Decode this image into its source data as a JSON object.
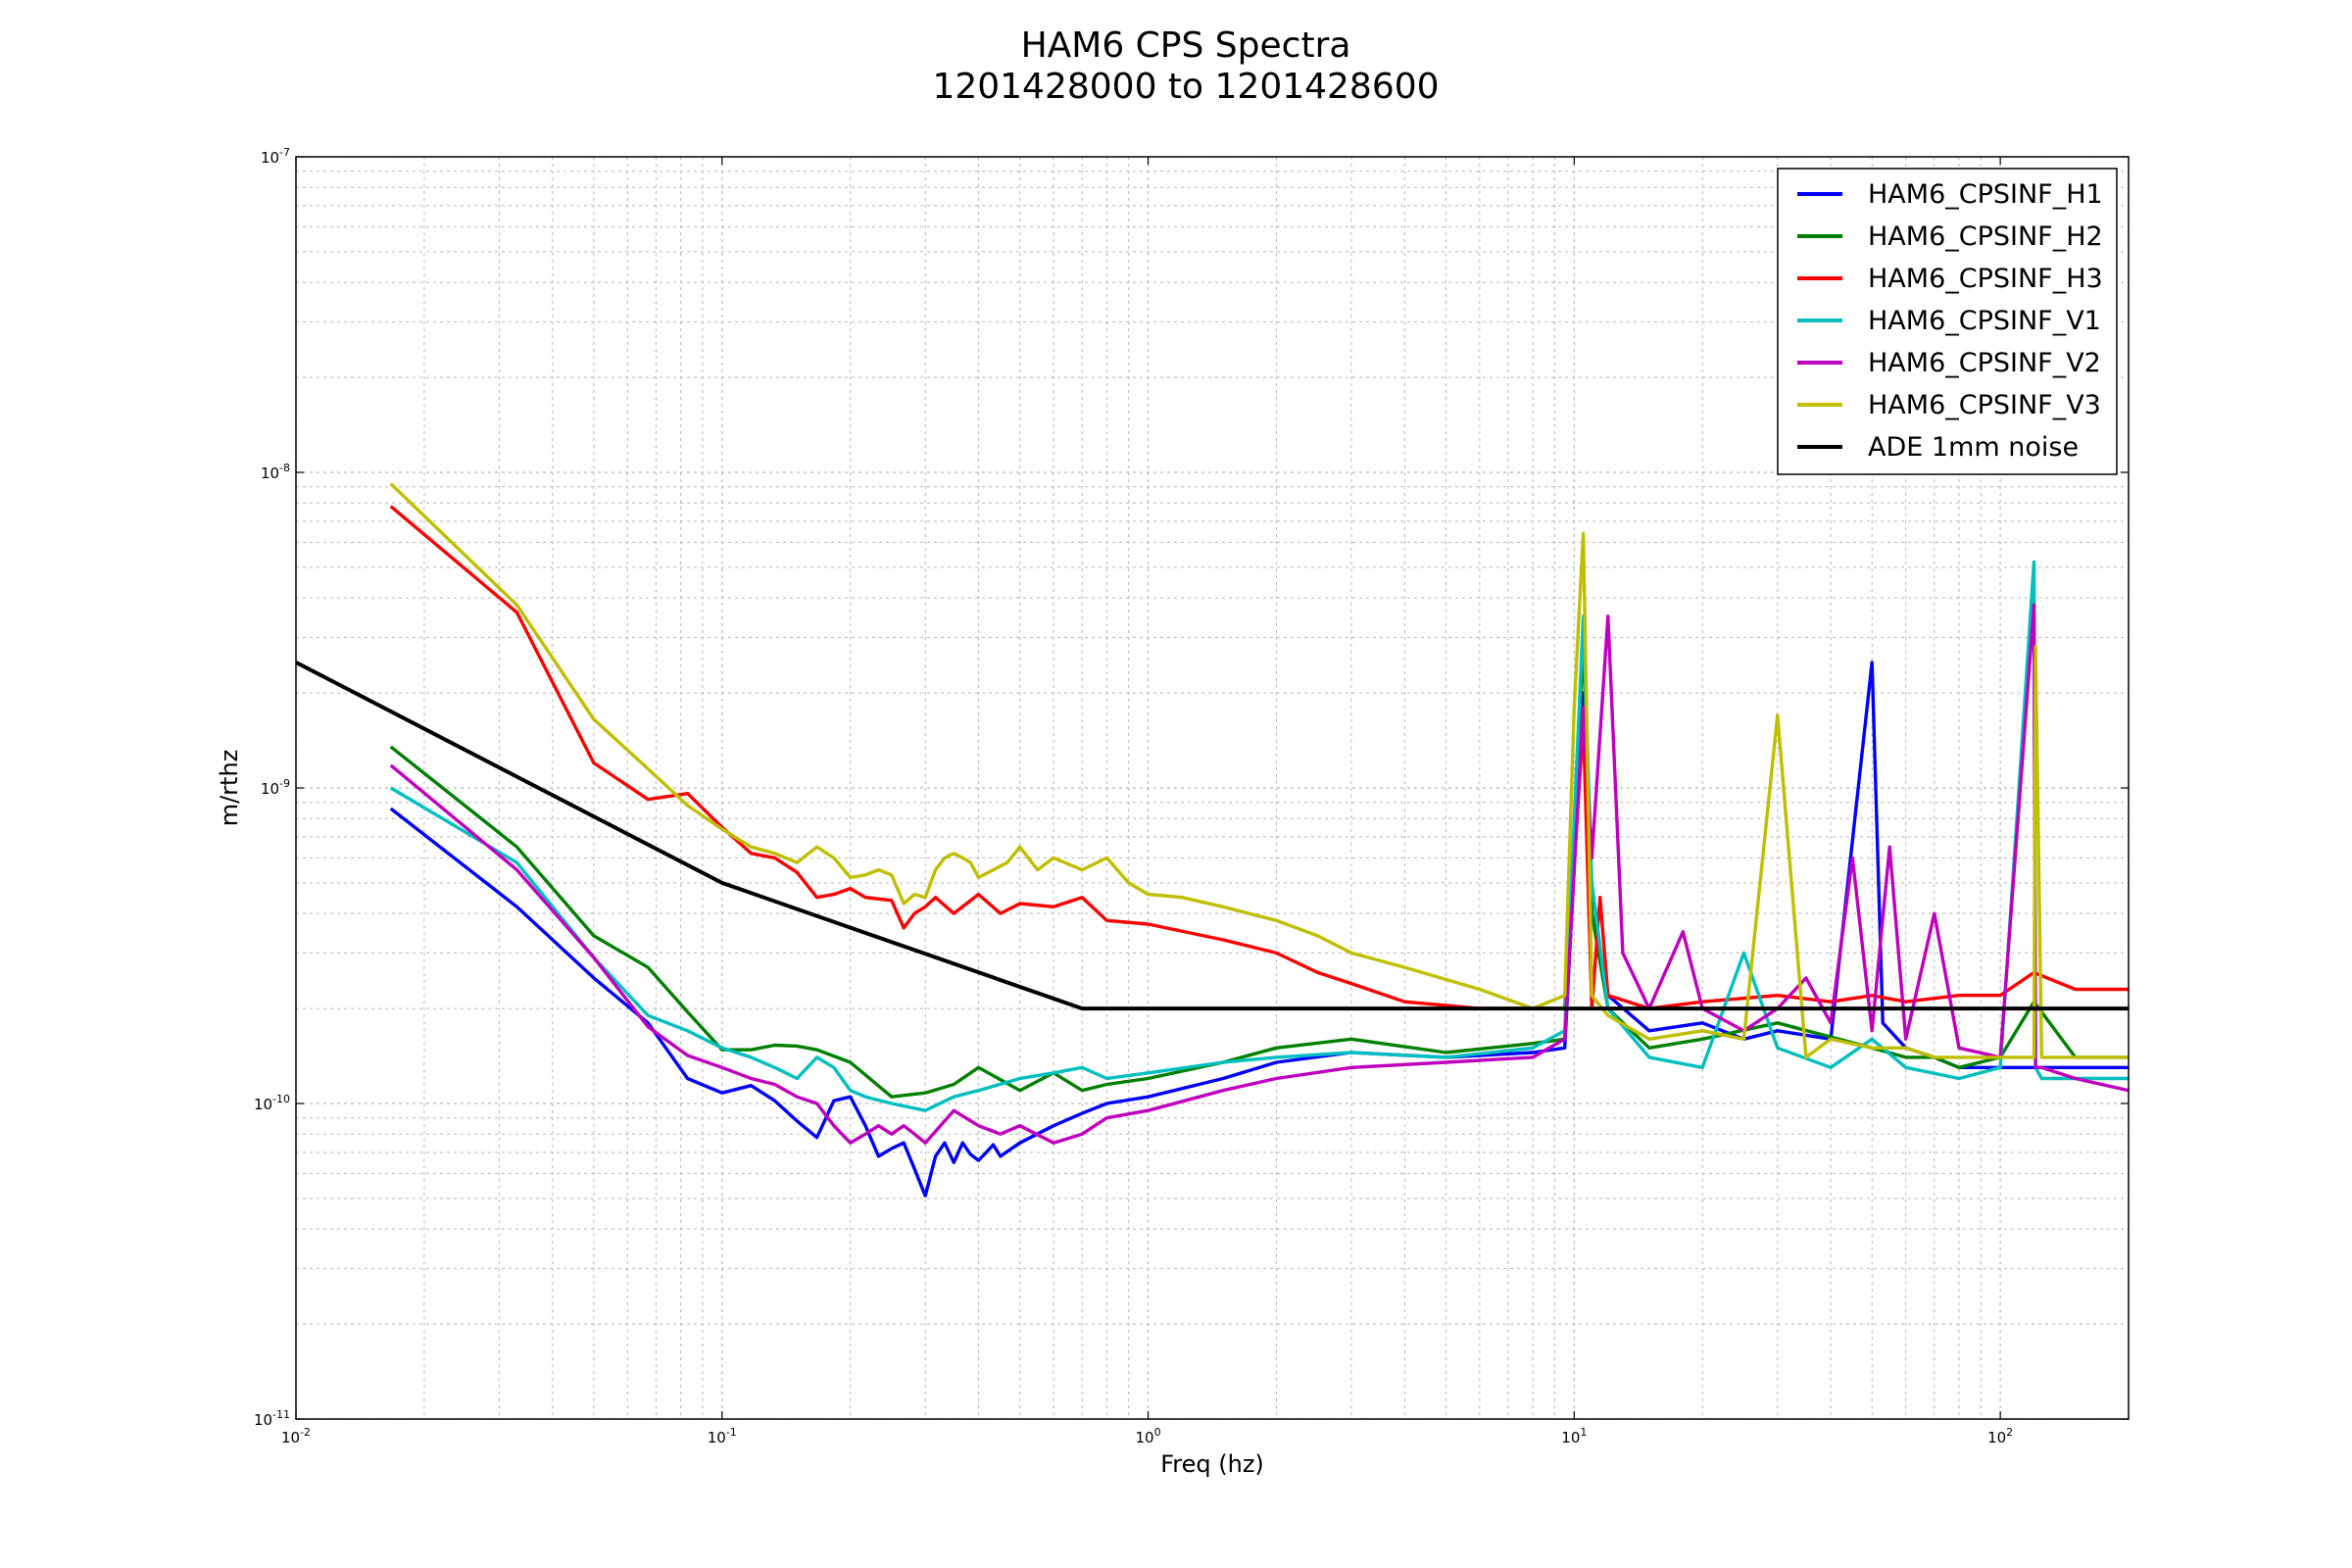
{
  "chart_data": {
    "type": "line",
    "title": "HAM6 CPS Spectra",
    "subtitle": "1201428000 to 1201428600",
    "xlabel": "Freq (hz)",
    "ylabel": "m/rthz",
    "xscale": "log",
    "yscale": "log",
    "xlim": [
      0.01,
      200
    ],
    "ylim": [
      1e-11,
      1e-07
    ],
    "grid": true,
    "legend_position": "top-right",
    "x_ticks": [
      {
        "value": 0.01,
        "base": "10",
        "exp": "-2"
      },
      {
        "value": 0.1,
        "base": "10",
        "exp": "-1"
      },
      {
        "value": 1,
        "base": "10",
        "exp": "0"
      },
      {
        "value": 10,
        "base": "10",
        "exp": "1"
      },
      {
        "value": 100,
        "base": "10",
        "exp": "2"
      }
    ],
    "y_ticks": [
      {
        "value": 1e-11,
        "base": "10",
        "exp": "-11"
      },
      {
        "value": 1e-10,
        "base": "10",
        "exp": "-10"
      },
      {
        "value": 1e-09,
        "base": "10",
        "exp": "-9"
      },
      {
        "value": 1e-08,
        "base": "10",
        "exp": "-8"
      },
      {
        "value": 1e-07,
        "base": "10",
        "exp": "-7"
      }
    ],
    "series": [
      {
        "name": "HAM6_CPSINF_H1",
        "color": "#0000ff",
        "x": [
          0.0167,
          0.033,
          0.05,
          0.067,
          0.083,
          0.1,
          0.117,
          0.133,
          0.15,
          0.167,
          0.183,
          0.2,
          0.217,
          0.233,
          0.25,
          0.267,
          0.283,
          0.3,
          0.317,
          0.333,
          0.35,
          0.367,
          0.383,
          0.4,
          0.417,
          0.433,
          0.45,
          0.5,
          0.6,
          0.7,
          0.8,
          1.0,
          1.5,
          2,
          3,
          5,
          8,
          9.5,
          10.5,
          11,
          12,
          15,
          20,
          25,
          30,
          40,
          50,
          53,
          60,
          70,
          80,
          100,
          120,
          150,
          200
        ],
        "y": [
          8.6e-10,
          4.2e-10,
          2.5e-10,
          1.8e-10,
          1.2e-10,
          1.08e-10,
          1.14e-10,
          1.02e-10,
          8.8e-11,
          7.8e-11,
          1.02e-10,
          1.05e-10,
          8.5e-11,
          6.8e-11,
          7.2e-11,
          7.5e-11,
          6.2e-11,
          5.1e-11,
          6.8e-11,
          7.5e-11,
          6.5e-11,
          7.5e-11,
          6.9e-11,
          6.6e-11,
          7e-11,
          7.4e-11,
          6.8e-11,
          7.5e-11,
          8.5e-11,
          9.3e-11,
          1e-10,
          1.05e-10,
          1.2e-10,
          1.35e-10,
          1.45e-10,
          1.4e-10,
          1.45e-10,
          1.5e-10,
          2e-09,
          4e-10,
          2.2e-10,
          1.7e-10,
          1.8e-10,
          1.6e-10,
          1.7e-10,
          1.6e-10,
          2.5e-09,
          1.8e-10,
          1.5e-10,
          1.4e-10,
          1.3e-10,
          1.3e-10,
          1.3e-10,
          1.3e-10,
          1.3e-10
        ]
      },
      {
        "name": "HAM6_CPSINF_H2",
        "color": "#008000",
        "x": [
          0.0167,
          0.033,
          0.05,
          0.067,
          0.083,
          0.1,
          0.117,
          0.133,
          0.15,
          0.167,
          0.2,
          0.25,
          0.3,
          0.35,
          0.4,
          0.5,
          0.6,
          0.7,
          0.8,
          1.0,
          1.5,
          2,
          3,
          5,
          8,
          9.5,
          10.5,
          11,
          12,
          15,
          20,
          30,
          50,
          60,
          70,
          80,
          100,
          120,
          150,
          200
        ],
        "y": [
          1.35e-09,
          6.5e-10,
          3.4e-10,
          2.7e-10,
          1.95e-10,
          1.48e-10,
          1.48e-10,
          1.53e-10,
          1.52e-10,
          1.48e-10,
          1.35e-10,
          1.05e-10,
          1.08e-10,
          1.15e-10,
          1.3e-10,
          1.1e-10,
          1.25e-10,
          1.1e-10,
          1.15e-10,
          1.2e-10,
          1.35e-10,
          1.5e-10,
          1.6e-10,
          1.45e-10,
          1.55e-10,
          1.6e-10,
          3e-09,
          4e-10,
          2e-10,
          1.5e-10,
          1.6e-10,
          1.8e-10,
          1.5e-10,
          1.4e-10,
          1.4e-10,
          1.3e-10,
          1.4e-10,
          2.1e-10,
          1.4e-10,
          1.4e-10
        ]
      },
      {
        "name": "HAM6_CPSINF_H3",
        "color": "#ff0000",
        "x": [
          0.0167,
          0.033,
          0.05,
          0.067,
          0.083,
          0.1,
          0.117,
          0.133,
          0.15,
          0.167,
          0.183,
          0.2,
          0.217,
          0.25,
          0.267,
          0.283,
          0.3,
          0.317,
          0.35,
          0.4,
          0.45,
          0.5,
          0.6,
          0.7,
          0.8,
          1.0,
          1.5,
          2,
          2.5,
          3,
          4,
          6,
          8,
          9.5,
          10.5,
          11,
          11.5,
          12,
          15,
          20,
          30,
          40,
          50,
          60,
          80,
          100,
          120,
          150,
          200
        ],
        "y": [
          7.8e-09,
          3.6e-09,
          1.2e-09,
          9.2e-10,
          9.6e-10,
          7.5e-10,
          6.2e-10,
          6e-10,
          5.4e-10,
          4.5e-10,
          4.6e-10,
          4.8e-10,
          4.5e-10,
          4.4e-10,
          3.6e-10,
          4e-10,
          4.2e-10,
          4.5e-10,
          4e-10,
          4.6e-10,
          4e-10,
          4.3e-10,
          4.2e-10,
          4.5e-10,
          3.8e-10,
          3.7e-10,
          3.3e-10,
          3e-10,
          2.6e-10,
          2.4e-10,
          2.1e-10,
          2e-10,
          2e-10,
          2e-10,
          1.6e-09,
          2e-10,
          4.5e-10,
          2.2e-10,
          2e-10,
          2.1e-10,
          2.2e-10,
          2.1e-10,
          2.2e-10,
          2.1e-10,
          2.2e-10,
          2.2e-10,
          2.6e-10,
          2.3e-10,
          2.3e-10
        ]
      },
      {
        "name": "HAM6_CPSINF_V1",
        "color": "#00bfbf",
        "x": [
          0.0167,
          0.033,
          0.05,
          0.067,
          0.083,
          0.1,
          0.117,
          0.133,
          0.15,
          0.167,
          0.183,
          0.2,
          0.217,
          0.25,
          0.3,
          0.35,
          0.4,
          0.5,
          0.6,
          0.7,
          0.8,
          1.0,
          1.5,
          2,
          3,
          5,
          8,
          9.5,
          10.5,
          11,
          12,
          15,
          20,
          25,
          30,
          40,
          50,
          60,
          80,
          100,
          120,
          121,
          125,
          150,
          200
        ],
        "y": [
          1e-09,
          5.8e-10,
          2.9e-10,
          1.9e-10,
          1.7e-10,
          1.5e-10,
          1.4e-10,
          1.3e-10,
          1.2e-10,
          1.4e-10,
          1.3e-10,
          1.1e-10,
          1.05e-10,
          1e-10,
          9.5e-11,
          1.05e-10,
          1.1e-10,
          1.2e-10,
          1.25e-10,
          1.3e-10,
          1.2e-10,
          1.25e-10,
          1.35e-10,
          1.4e-10,
          1.45e-10,
          1.4e-10,
          1.5e-10,
          1.7e-10,
          3.5e-09,
          5e-10,
          2e-10,
          1.4e-10,
          1.3e-10,
          3e-10,
          1.5e-10,
          1.3e-10,
          1.6e-10,
          1.3e-10,
          1.2e-10,
          1.3e-10,
          5.2e-09,
          1.3e-10,
          1.2e-10,
          1.2e-10,
          1.2e-10
        ]
      },
      {
        "name": "HAM6_CPSINF_V2",
        "color": "#bf00bf",
        "x": [
          0.0167,
          0.033,
          0.05,
          0.067,
          0.083,
          0.1,
          0.117,
          0.133,
          0.15,
          0.167,
          0.183,
          0.2,
          0.217,
          0.233,
          0.25,
          0.267,
          0.283,
          0.3,
          0.35,
          0.4,
          0.45,
          0.5,
          0.6,
          0.7,
          0.8,
          1.0,
          1.5,
          2,
          3,
          5,
          8,
          9.5,
          10.5,
          11,
          12,
          13,
          15,
          18,
          20,
          25,
          30,
          35,
          40,
          45,
          50,
          55,
          60,
          70,
          80,
          100,
          120,
          121,
          125,
          150,
          200
        ],
        "y": [
          1.18e-09,
          5.5e-10,
          2.9e-10,
          1.75e-10,
          1.42e-10,
          1.3e-10,
          1.2e-10,
          1.15e-10,
          1.05e-10,
          1e-10,
          8.5e-11,
          7.5e-11,
          8e-11,
          8.5e-11,
          8e-11,
          8.5e-11,
          8e-11,
          7.5e-11,
          9.5e-11,
          8.5e-11,
          8e-11,
          8.5e-11,
          7.5e-11,
          8e-11,
          9e-11,
          9.5e-11,
          1.1e-10,
          1.2e-10,
          1.3e-10,
          1.35e-10,
          1.4e-10,
          1.6e-10,
          1.8e-09,
          6e-10,
          3.5e-09,
          3e-10,
          2e-10,
          3.5e-10,
          2e-10,
          1.7e-10,
          2e-10,
          2.5e-10,
          1.8e-10,
          6e-10,
          1.7e-10,
          6.5e-10,
          1.6e-10,
          4e-10,
          1.5e-10,
          1.4e-10,
          3.8e-09,
          1.3e-10,
          1.3e-10,
          1.2e-10,
          1.1e-10
        ]
      },
      {
        "name": "HAM6_CPSINF_V3",
        "color": "#bfbf00",
        "x": [
          0.0167,
          0.033,
          0.05,
          0.067,
          0.083,
          0.1,
          0.117,
          0.133,
          0.15,
          0.167,
          0.183,
          0.2,
          0.217,
          0.233,
          0.25,
          0.267,
          0.283,
          0.3,
          0.317,
          0.333,
          0.35,
          0.367,
          0.383,
          0.4,
          0.433,
          0.467,
          0.5,
          0.55,
          0.6,
          0.7,
          0.8,
          0.9,
          1.0,
          1.2,
          1.5,
          2,
          2.5,
          3,
          4,
          6,
          8,
          9.5,
          10,
          10.5,
          11,
          12,
          15,
          20,
          25,
          30,
          35,
          40,
          50,
          60,
          70,
          80,
          100,
          120,
          121,
          125,
          150,
          200
        ],
        "y": [
          9.2e-09,
          3.8e-09,
          1.65e-09,
          1.15e-09,
          8.8e-10,
          7.4e-10,
          6.5e-10,
          6.2e-10,
          5.8e-10,
          6.5e-10,
          6e-10,
          5.2e-10,
          5.3e-10,
          5.5e-10,
          5.3e-10,
          4.3e-10,
          4.6e-10,
          4.5e-10,
          5.5e-10,
          6e-10,
          6.2e-10,
          6e-10,
          5.8e-10,
          5.2e-10,
          5.5e-10,
          5.8e-10,
          6.5e-10,
          5.5e-10,
          6e-10,
          5.5e-10,
          6e-10,
          5e-10,
          4.6e-10,
          4.5e-10,
          4.2e-10,
          3.8e-10,
          3.4e-10,
          3e-10,
          2.7e-10,
          2.3e-10,
          2e-10,
          2.2e-10,
          1.8e-09,
          6.4e-09,
          2.2e-10,
          1.9e-10,
          1.6e-10,
          1.7e-10,
          1.6e-10,
          1.7e-09,
          1.4e-10,
          1.6e-10,
          1.5e-10,
          1.5e-10,
          1.4e-10,
          1.4e-10,
          1.4e-10,
          1.4e-10,
          2.8e-09,
          1.4e-10,
          1.4e-10,
          1.4e-10
        ]
      },
      {
        "name": "ADE 1mm noise",
        "color": "#000000",
        "x": [
          0.01,
          0.1,
          0.7,
          200
        ],
        "y": [
          2.5e-09,
          5e-10,
          2e-10,
          2e-10
        ]
      }
    ]
  }
}
